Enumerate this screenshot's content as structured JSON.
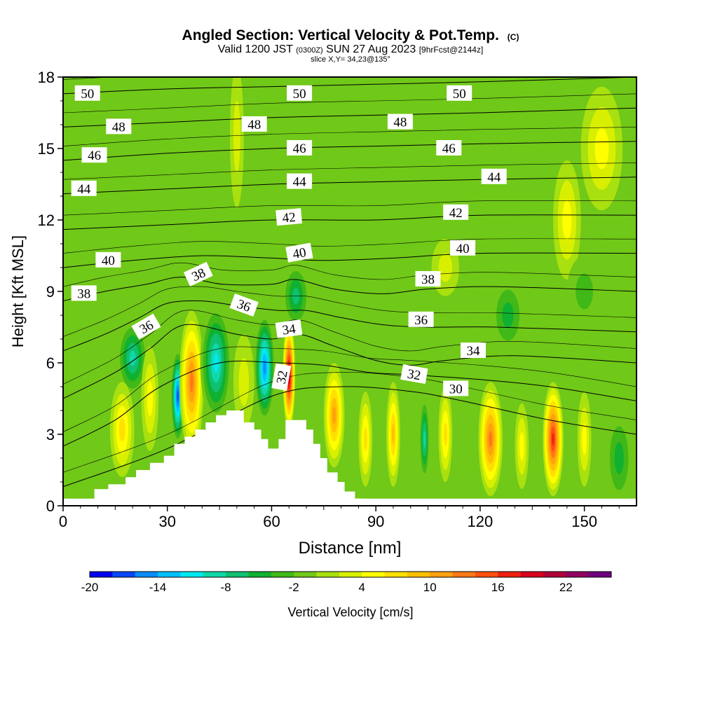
{
  "chart_data": {
    "type": "heatmap",
    "title": "Angled Section: Vertical Velocity & Pot.Temp.",
    "title_mark": "(C)",
    "subtitle": {
      "valid_prefix": "Valid 1200 JST",
      "utc": "(0300Z)",
      "date": "SUN 27 Aug 2023",
      "forecast": "[9hrFcst@2144z]"
    },
    "slice_label": "slice X,Y= 34,23@135°",
    "xlabel": "Distance [nm]",
    "ylabel": "Height [Kft MSL]",
    "xlim": [
      0,
      165
    ],
    "ylim": [
      0,
      18
    ],
    "x_ticks": [
      "0",
      "30",
      "60",
      "90",
      "120",
      "150"
    ],
    "x_tick_values": [
      0,
      30,
      60,
      90,
      120,
      150
    ],
    "y_ticks": [
      "0",
      "3",
      "6",
      "9",
      "12",
      "15",
      "18"
    ],
    "y_tick_values": [
      0,
      3,
      6,
      9,
      12,
      15,
      18
    ],
    "colorbar": {
      "label": "Vertical Velocity [cm/s]",
      "range": [
        -20,
        26
      ],
      "step": 2,
      "tick_labels": [
        "-20",
        "-14",
        "-8",
        "-2",
        "4",
        "10",
        "16",
        "22"
      ],
      "tick_values": [
        -20,
        -14,
        -8,
        -2,
        4,
        10,
        16,
        22
      ],
      "colors": [
        "#0000f0",
        "#0a46f8",
        "#0a8cf8",
        "#00c0ff",
        "#00e8f0",
        "#10d8a8",
        "#10c070",
        "#10b030",
        "#40b818",
        "#70c818",
        "#a8e010",
        "#d8f000",
        "#ffff00",
        "#ffe000",
        "#ffc000",
        "#ffa010",
        "#ff7818",
        "#ff5010",
        "#f02010",
        "#d8001c",
        "#b00038",
        "#900060",
        "#700080"
      ]
    },
    "terrain": [
      [
        9,
        0.7
      ],
      [
        13,
        0.7
      ],
      [
        13,
        0.9
      ],
      [
        18,
        0.9
      ],
      [
        18,
        1.2
      ],
      [
        21,
        1.2
      ],
      [
        21,
        1.5
      ],
      [
        25,
        1.5
      ],
      [
        25,
        1.8
      ],
      [
        29,
        1.8
      ],
      [
        29,
        2.1
      ],
      [
        32,
        2.1
      ],
      [
        32,
        2.6
      ],
      [
        35,
        2.6
      ],
      [
        35,
        2.9
      ],
      [
        38,
        2.9
      ],
      [
        38,
        3.2
      ],
      [
        41,
        3.2
      ],
      [
        41,
        3.5
      ],
      [
        44,
        3.5
      ],
      [
        44,
        3.8
      ],
      [
        47,
        3.8
      ],
      [
        47,
        4.0
      ],
      [
        52,
        4.0
      ],
      [
        52,
        3.5
      ],
      [
        55,
        3.5
      ],
      [
        55,
        3.2
      ],
      [
        57,
        3.2
      ],
      [
        57,
        2.8
      ],
      [
        59,
        2.8
      ],
      [
        59,
        2.4
      ],
      [
        62,
        2.4
      ],
      [
        62,
        2.8
      ],
      [
        64,
        2.8
      ],
      [
        64,
        3.6
      ],
      [
        70,
        3.6
      ],
      [
        70,
        3.2
      ],
      [
        72,
        3.2
      ],
      [
        72,
        2.6
      ],
      [
        74,
        2.6
      ],
      [
        74,
        2.0
      ],
      [
        76,
        2.0
      ],
      [
        76,
        1.4
      ],
      [
        79,
        1.4
      ],
      [
        79,
        1.0
      ],
      [
        81,
        1.0
      ],
      [
        81,
        0.6
      ],
      [
        84,
        0.6
      ],
      [
        84,
        0.3
      ],
      [
        86,
        0.3
      ]
    ],
    "series": [
      {
        "name": "30",
        "values": [
          [
            0,
            0.8
          ],
          [
            30,
            2.4
          ],
          [
            60,
            4.6
          ],
          [
            80,
            5.0
          ],
          [
            100,
            4.8
          ],
          [
            115,
            4.4
          ],
          [
            140,
            3.6
          ],
          [
            165,
            3.0
          ]
        ],
        "label_x": 113,
        "label_y": 4.9,
        "label_angle": 0
      },
      {
        "name": "32",
        "values": [
          [
            0,
            2.5
          ],
          [
            15,
            3.6
          ],
          [
            28,
            5.0
          ],
          [
            45,
            6.0
          ],
          [
            62,
            6.0
          ],
          [
            75,
            5.9
          ],
          [
            88,
            5.6
          ],
          [
            100,
            5.5
          ],
          [
            120,
            5.3
          ],
          [
            140,
            5.0
          ],
          [
            165,
            4.4
          ]
        ],
        "label_x": 63,
        "label_y": 5.4,
        "label_angle": -80
      },
      {
        "name": "34",
        "values": [
          [
            0,
            4.5
          ],
          [
            15,
            5.6
          ],
          [
            25,
            6.6
          ],
          [
            35,
            7.6
          ],
          [
            50,
            7.2
          ],
          [
            60,
            7.0
          ],
          [
            68,
            7.2
          ],
          [
            78,
            6.7
          ],
          [
            90,
            6.1
          ],
          [
            100,
            5.9
          ],
          [
            110,
            6.1
          ],
          [
            130,
            6.3
          ],
          [
            165,
            6.0
          ]
        ],
        "label_x": 118,
        "label_y": 6.5,
        "label_angle": 0
      },
      {
        "name": "36",
        "values": [
          [
            0,
            6.5
          ],
          [
            12,
            7.2
          ],
          [
            22,
            7.9
          ],
          [
            30,
            8.5
          ],
          [
            40,
            8.6
          ],
          [
            50,
            8.4
          ],
          [
            62,
            8.2
          ],
          [
            70,
            8.2
          ],
          [
            80,
            7.9
          ],
          [
            92,
            7.6
          ],
          [
            105,
            7.5
          ],
          [
            125,
            7.5
          ],
          [
            165,
            7.3
          ]
        ],
        "label_x": 103,
        "label_y": 7.8,
        "label_angle": 0
      },
      {
        "name": "38",
        "values": [
          [
            0,
            8.6
          ],
          [
            12,
            9.0
          ],
          [
            24,
            9.3
          ],
          [
            34,
            9.6
          ],
          [
            46,
            9.3
          ],
          [
            60,
            9.3
          ],
          [
            67,
            9.5
          ],
          [
            78,
            9.1
          ],
          [
            92,
            8.9
          ],
          [
            105,
            9.1
          ],
          [
            125,
            9.2
          ],
          [
            165,
            9.0
          ]
        ],
        "label_x": 105,
        "label_y": 9.5,
        "label_angle": 0
      },
      {
        "name": "40",
        "values": [
          [
            0,
            10.0
          ],
          [
            20,
            10.3
          ],
          [
            40,
            10.5
          ],
          [
            60,
            10.4
          ],
          [
            75,
            10.3
          ],
          [
            95,
            10.4
          ],
          [
            120,
            10.6
          ],
          [
            165,
            10.6
          ]
        ],
        "label_x": 115,
        "label_y": 10.8,
        "label_angle": 0
      },
      {
        "name": "42",
        "values": [
          [
            0,
            11.6
          ],
          [
            30,
            11.8
          ],
          [
            60,
            12.0
          ],
          [
            90,
            12.0
          ],
          [
            120,
            12.2
          ],
          [
            165,
            12.2
          ]
        ],
        "label_x": 113,
        "label_y": 12.3,
        "label_angle": 0
      },
      {
        "name": "44",
        "values": [
          [
            0,
            13.1
          ],
          [
            30,
            13.3
          ],
          [
            60,
            13.5
          ],
          [
            90,
            13.6
          ],
          [
            120,
            13.7
          ],
          [
            165,
            13.8
          ]
        ],
        "label_x": 124,
        "label_y": 13.8,
        "label_angle": 0
      },
      {
        "name": "46",
        "values": [
          [
            0,
            14.5
          ],
          [
            30,
            14.8
          ],
          [
            60,
            15.0
          ],
          [
            90,
            15.1
          ],
          [
            120,
            15.2
          ],
          [
            165,
            15.3
          ]
        ],
        "label_x": 111,
        "label_y": 15.0,
        "label_angle": 0
      },
      {
        "name": "48",
        "values": [
          [
            0,
            15.9
          ],
          [
            30,
            16.1
          ],
          [
            60,
            16.3
          ],
          [
            90,
            16.4
          ],
          [
            120,
            16.5
          ],
          [
            165,
            16.7
          ]
        ],
        "label_x": 97,
        "label_y": 16.1,
        "label_angle": 0
      },
      {
        "name": "50",
        "values": [
          [
            0,
            17.3
          ],
          [
            30,
            17.5
          ],
          [
            60,
            17.6
          ],
          [
            90,
            17.7
          ],
          [
            120,
            17.8
          ],
          [
            165,
            18.0
          ]
        ],
        "label_x": 114,
        "label_y": 17.3,
        "label_angle": 0
      }
    ],
    "extra_contour_labels": [
      {
        "name": "50",
        "x": 7,
        "y": 17.3,
        "angle": 0
      },
      {
        "name": "50",
        "x": 68,
        "y": 17.3,
        "angle": 0
      },
      {
        "name": "48",
        "x": 16,
        "y": 15.9,
        "angle": 0
      },
      {
        "name": "48",
        "x": 55,
        "y": 16.0,
        "angle": 0
      },
      {
        "name": "46",
        "x": 9,
        "y": 14.7,
        "angle": 0
      },
      {
        "name": "46",
        "x": 68,
        "y": 15.0,
        "angle": 0
      },
      {
        "name": "44",
        "x": 6,
        "y": 13.3,
        "angle": 0
      },
      {
        "name": "44",
        "x": 68,
        "y": 13.6,
        "angle": 0
      },
      {
        "name": "42",
        "x": 65,
        "y": 12.1,
        "angle": -5
      },
      {
        "name": "40",
        "x": 13,
        "y": 10.3,
        "angle": 0
      },
      {
        "name": "40",
        "x": 68,
        "y": 10.6,
        "angle": -10
      },
      {
        "name": "38",
        "x": 6,
        "y": 8.9,
        "angle": 0
      },
      {
        "name": "38",
        "x": 39,
        "y": 9.7,
        "angle": -25
      },
      {
        "name": "36",
        "x": 24,
        "y": 7.5,
        "angle": -30
      },
      {
        "name": "36",
        "x": 52,
        "y": 8.4,
        "angle": 20
      },
      {
        "name": "34",
        "x": 65,
        "y": 7.4,
        "angle": -8
      },
      {
        "name": "32",
        "x": 101,
        "y": 5.5,
        "angle": 10
      }
    ],
    "cells": [
      {
        "x": 33,
        "y": 4.6,
        "rx": 2.0,
        "ry": 2.0,
        "w": -18
      },
      {
        "x": 37,
        "y": 5.2,
        "rx": 3.5,
        "ry": 3.0,
        "w": 14
      },
      {
        "x": 44,
        "y": 6.0,
        "rx": 4.5,
        "ry": 2.5,
        "w": -12
      },
      {
        "x": 58,
        "y": 5.8,
        "rx": 3.0,
        "ry": 2.3,
        "w": -16
      },
      {
        "x": 65,
        "y": 5.5,
        "rx": 1.8,
        "ry": 2.3,
        "w": 22
      },
      {
        "x": 67,
        "y": 8.8,
        "rx": 4.0,
        "ry": 1.4,
        "w": -8
      },
      {
        "x": 20,
        "y": 6.2,
        "rx": 4.5,
        "ry": 1.6,
        "w": -9
      },
      {
        "x": 17,
        "y": 3.2,
        "rx": 3.5,
        "ry": 2.0,
        "w": 8
      },
      {
        "x": 25,
        "y": 4.5,
        "rx": 2.5,
        "ry": 2.2,
        "w": 6
      },
      {
        "x": 52,
        "y": 5.2,
        "rx": 3.0,
        "ry": 2.0,
        "w": 4
      },
      {
        "x": 78,
        "y": 3.8,
        "rx": 3.0,
        "ry": 2.2,
        "w": 12
      },
      {
        "x": 87,
        "y": 2.8,
        "rx": 2.0,
        "ry": 2.0,
        "w": 8
      },
      {
        "x": 95,
        "y": 3.0,
        "rx": 2.0,
        "ry": 2.2,
        "w": 10
      },
      {
        "x": 104,
        "y": 2.8,
        "rx": 1.5,
        "ry": 1.8,
        "w": -10
      },
      {
        "x": 110,
        "y": 3.0,
        "rx": 2.0,
        "ry": 2.0,
        "w": 8
      },
      {
        "x": 123,
        "y": 2.8,
        "rx": 3.5,
        "ry": 2.4,
        "w": 14
      },
      {
        "x": 132,
        "y": 2.5,
        "rx": 2.0,
        "ry": 1.8,
        "w": 6
      },
      {
        "x": 141,
        "y": 2.8,
        "rx": 3.0,
        "ry": 2.4,
        "w": 18
      },
      {
        "x": 150,
        "y": 2.8,
        "rx": 2.0,
        "ry": 2.0,
        "w": 6
      },
      {
        "x": 160,
        "y": 2.0,
        "rx": 4.0,
        "ry": 2.0,
        "w": -6
      },
      {
        "x": 155,
        "y": 15.0,
        "rx": 6.0,
        "ry": 2.6,
        "w": 6
      },
      {
        "x": 145,
        "y": 12.0,
        "rx": 4.0,
        "ry": 2.5,
        "w": 5
      },
      {
        "x": 110,
        "y": 10.0,
        "rx": 4.0,
        "ry": 1.2,
        "w": 4
      },
      {
        "x": 50,
        "y": 15.5,
        "rx": 2.0,
        "ry": 3.0,
        "w": 3
      },
      {
        "x": 150,
        "y": 9.0,
        "rx": 5.0,
        "ry": 1.5,
        "w": -4
      },
      {
        "x": 10,
        "y": 13.0,
        "rx": 6.0,
        "ry": 2.5,
        "w": -2
      },
      {
        "x": 98,
        "y": 14.0,
        "rx": 4.0,
        "ry": 3.0,
        "w": -2
      },
      {
        "x": 128,
        "y": 8.0,
        "rx": 5.0,
        "ry": 1.6,
        "w": -5
      }
    ]
  }
}
